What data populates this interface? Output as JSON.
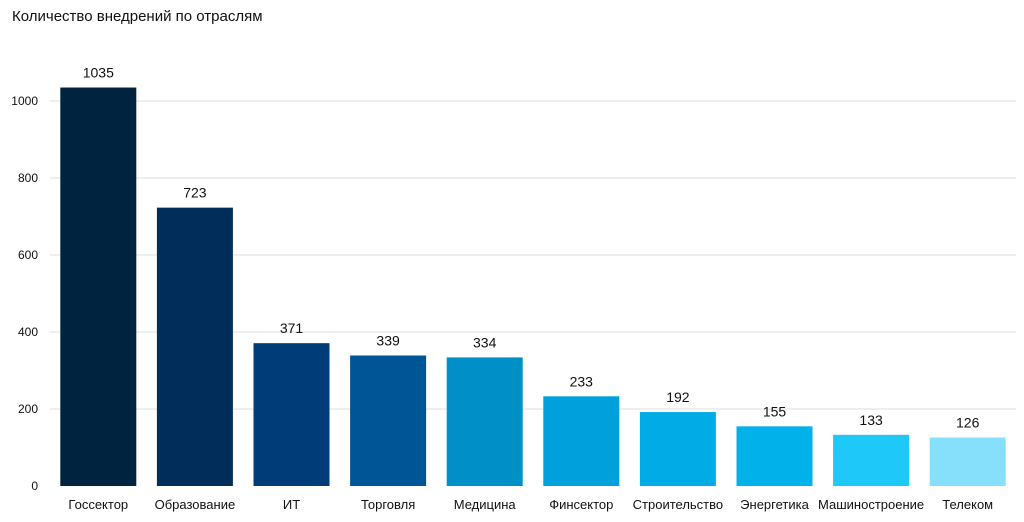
{
  "chart_data": {
    "type": "bar",
    "title": "Количество внедрений по отраслям",
    "xlabel": "",
    "ylabel": "",
    "ylim": [
      0,
      1100
    ],
    "yticks": [
      0,
      200,
      400,
      600,
      800,
      1000
    ],
    "grid": true,
    "categories": [
      "Госсектор",
      "Образование",
      "ИТ",
      "Торговля",
      "Медицина",
      "Финсектор",
      "Строительство",
      "Энергетика",
      "Машиностроение",
      "Телеком"
    ],
    "values": [
      1035,
      723,
      371,
      339,
      334,
      233,
      192,
      155,
      133,
      126
    ],
    "colors": [
      "#002340",
      "#002d5a",
      "#003d78",
      "#005597",
      "#0090c8",
      "#00a0dc",
      "#00abe6",
      "#00b1ea",
      "#1ec8f9",
      "#86e0fc"
    ]
  }
}
